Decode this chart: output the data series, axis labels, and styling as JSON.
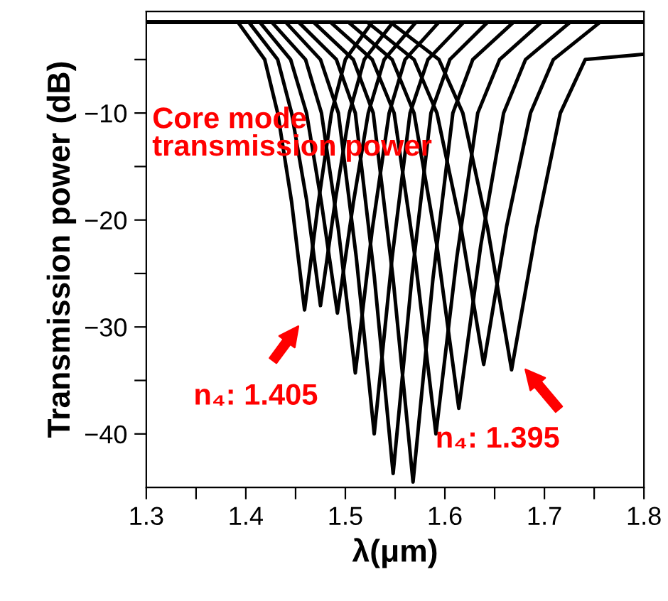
{
  "chart_data": {
    "type": "line",
    "xlabel": "λ(μm)",
    "ylabel": "Transmission power (dB)",
    "xlim": [
      1.3,
      1.8
    ],
    "ylim": [
      -45,
      -0.5
    ],
    "xticks": [
      1.3,
      {
        "value": 1.35,
        "label": null
      },
      1.4,
      {
        "value": 1.45,
        "label": null
      },
      1.5,
      {
        "value": 1.55,
        "label": null
      },
      1.6,
      {
        "value": 1.65,
        "label": null
      },
      1.7,
      {
        "value": 1.75,
        "label": null
      },
      1.8
    ],
    "yticks": [
      {
        "value": -5,
        "label": null
      },
      {
        "value": -10,
        "label": "−10"
      },
      {
        "value": -15,
        "label": null
      },
      {
        "value": -20,
        "label": "−20"
      },
      {
        "value": -25,
        "label": null
      },
      {
        "value": -30,
        "label": "−30"
      },
      {
        "value": -35,
        "label": null
      },
      {
        "value": -40,
        "label": "−40"
      }
    ],
    "grid": false,
    "legend": false,
    "marker": "none",
    "line_style": "solid",
    "series": [
      {
        "color": "#000000",
        "x": [
          1.3,
          1.392,
          1.419,
          1.432,
          1.446,
          1.459,
          1.473,
          1.486,
          1.5,
          1.527,
          1.8
        ],
        "values": [
          -1.5,
          -1.5,
          -5,
          -10,
          -18.3,
          -28.4,
          -18.3,
          -10,
          -5,
          -1.5,
          -1.5
        ]
      },
      {
        "color": "#000000",
        "x": [
          1.3,
          1.403,
          1.432,
          1.446,
          1.461,
          1.475,
          1.49,
          1.504,
          1.519,
          1.548,
          1.8
        ],
        "values": [
          -1.5,
          -1.5,
          -5,
          -10,
          -18.1,
          -28.0,
          -18.1,
          -10,
          -5,
          -1.5,
          -1.5
        ]
      },
      {
        "color": "#000000",
        "x": [
          1.3,
          1.414,
          1.445,
          1.461,
          1.476,
          1.492,
          1.508,
          1.523,
          1.539,
          1.571,
          1.8
        ],
        "values": [
          -1.5,
          -1.5,
          -5,
          -10,
          -18.4,
          -28.7,
          -18.4,
          -10,
          -5,
          -1.5,
          -1.5
        ]
      },
      {
        "color": "#000000",
        "x": [
          1.3,
          1.426,
          1.46,
          1.476,
          1.493,
          1.51,
          1.527,
          1.544,
          1.56,
          1.594,
          1.8
        ],
        "values": [
          -1.5,
          -1.5,
          -5,
          -10,
          -20.9,
          -34.3,
          -20.9,
          -10,
          -5,
          -1.5,
          -1.5
        ]
      },
      {
        "color": "#000000",
        "x": [
          1.3,
          1.44,
          1.475,
          1.493,
          1.511,
          1.529,
          1.547,
          1.565,
          1.583,
          1.619,
          1.8
        ],
        "values": [
          -1.5,
          -1.5,
          -5,
          -10,
          -23.5,
          -40.0,
          -23.5,
          -10,
          -5,
          -1.5,
          -1.5
        ]
      },
      {
        "color": "#000000",
        "x": [
          1.3,
          1.453,
          1.491,
          1.51,
          1.529,
          1.548,
          1.567,
          1.586,
          1.605,
          1.643,
          1.8
        ],
        "values": [
          -1.5,
          -1.5,
          -5,
          -10,
          -25.2,
          -43.7,
          -25.2,
          -10,
          -5,
          -1.5,
          -1.5
        ]
      },
      {
        "color": "#000000",
        "x": [
          1.3,
          1.468,
          1.508,
          1.528,
          1.548,
          1.568,
          1.588,
          1.608,
          1.628,
          1.669,
          1.8
        ],
        "values": [
          -1.5,
          -1.5,
          -5,
          -10,
          -25.5,
          -44.5,
          -25.5,
          -10,
          -5,
          -1.5,
          -1.5
        ]
      },
      {
        "color": "#000000",
        "x": [
          1.3,
          1.485,
          1.527,
          1.549,
          1.57,
          1.591,
          1.612,
          1.633,
          1.655,
          1.697,
          1.8
        ],
        "values": [
          -1.5,
          -1.5,
          -5,
          -10,
          -23.5,
          -40.0,
          -23.5,
          -10,
          -5,
          -1.5,
          -1.5
        ]
      },
      {
        "color": "#000000",
        "x": [
          1.3,
          1.503,
          1.547,
          1.569,
          1.592,
          1.614,
          1.636,
          1.659,
          1.681,
          1.726,
          1.8
        ],
        "values": [
          -1.5,
          -1.5,
          -5,
          -10,
          -22.4,
          -37.6,
          -22.4,
          -10,
          -5,
          -1.5,
          -1.5
        ]
      },
      {
        "color": "#000000",
        "x": [
          1.3,
          1.522,
          1.569,
          1.592,
          1.616,
          1.639,
          1.662,
          1.686,
          1.709,
          1.756,
          1.8
        ],
        "values": [
          -1.5,
          -1.5,
          -5,
          -10,
          -20.6,
          -33.5,
          -20.6,
          -10,
          -5,
          -1.5,
          -1.5
        ]
      },
      {
        "color": "#000000",
        "x": [
          1.3,
          1.545,
          1.594,
          1.618,
          1.643,
          1.667,
          1.692,
          1.716,
          1.741,
          1.8
        ],
        "values": [
          -1.5,
          -1.5,
          -5,
          -10,
          -20.8,
          -34.0,
          -20.8,
          -10,
          -5,
          -4.5
        ]
      }
    ],
    "annotations": [
      "Core mode\ntransmission power",
      "n₄: 1.405",
      "n₄: 1.395"
    ]
  }
}
